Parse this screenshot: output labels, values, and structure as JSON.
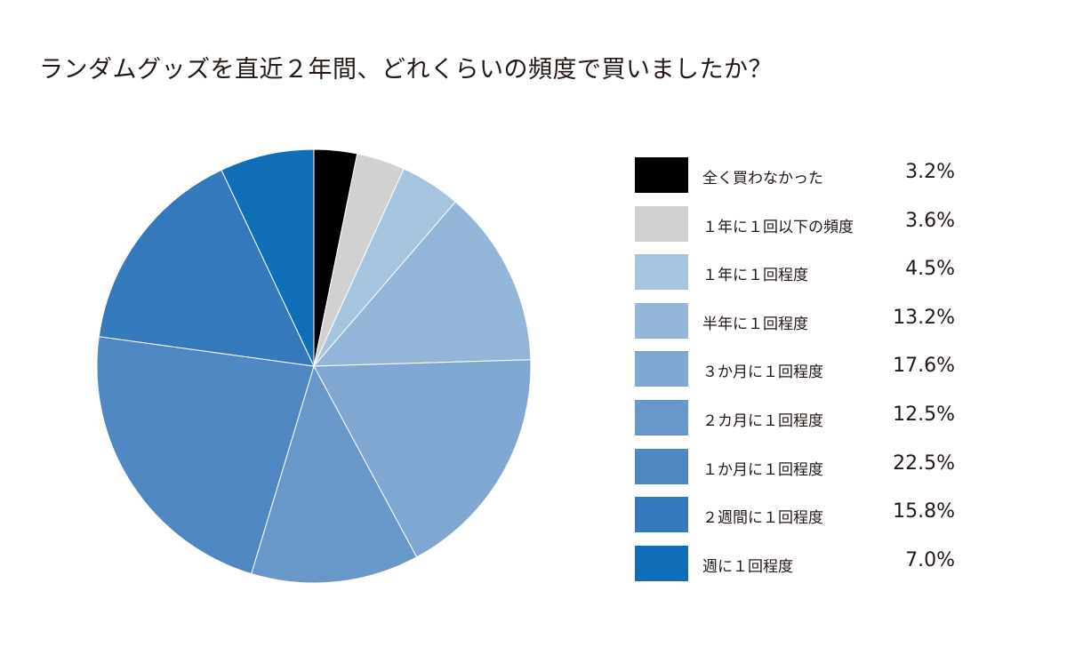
{
  "chart_data": {
    "type": "pie",
    "title": "ランダムグッズを直近２年間、どれくらいの頻度で買いましたか？",
    "start": "top",
    "direction": "clockwise",
    "legend_placement": "right",
    "categories": [
      "全く買わなかった",
      "１年に１回以下の頻度",
      "１年に１回程度",
      "半年に１回程度",
      "３か月に１回程度",
      "２カ月に１回程度",
      "１か月に１回程度",
      "２週間に１回程度",
      "週に１回程度"
    ],
    "values": [
      3.2,
      3.6,
      4.5,
      13.2,
      17.6,
      12.5,
      22.5,
      15.8,
      7.0
    ],
    "value_labels": [
      "3.2%",
      "3.6%",
      "4.5%",
      "13.2%",
      "17.6%",
      "12.5%",
      "22.5%",
      "15.8%",
      "7.0%"
    ],
    "colors": [
      "#000000",
      "#d0d1d0",
      "#a7c4df",
      "#93b6d8",
      "#7fa7d1",
      "#6897c9",
      "#4f87c2",
      "#3479bb",
      "#106db8"
    ]
  }
}
